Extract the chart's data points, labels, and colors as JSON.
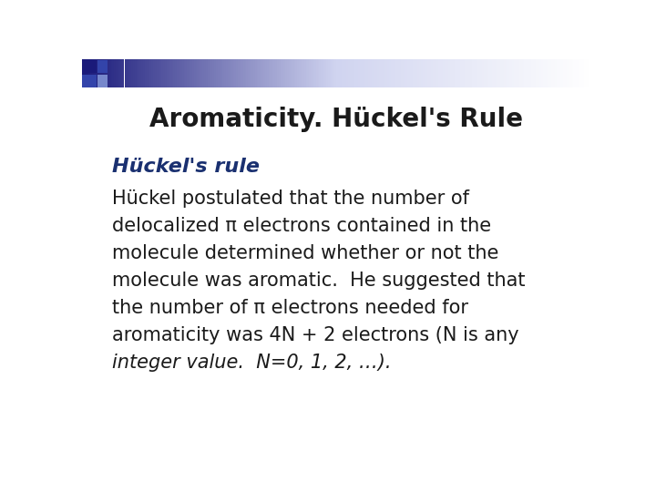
{
  "title": "Aromaticity. Hückel's Rule",
  "subtitle_bold_italic": "Hückel's rule",
  "subtitle_color": "#1a3070",
  "body_text_lines": [
    "Hückel postulated that the number of",
    "delocalized π electrons contained in the",
    "molecule determined whether or not the",
    "molecule was aromatic.  He suggested that",
    "the number of π electrons needed for",
    "aromaticity was 4N + 2 electrons (N is any",
    "integer value.  N=0, 1, 2, …)."
  ],
  "background_color": "#ffffff",
  "text_color": "#1a1a1a",
  "title_fontsize": 20,
  "subtitle_fontsize": 16,
  "body_fontsize": 15,
  "header_color_left": "#1a1a7a",
  "header_color_right": "#d0d4f0",
  "sq1_color": "#1a1a7a",
  "sq2_color": "#3344aa",
  "sq3_color": "#7788cc"
}
